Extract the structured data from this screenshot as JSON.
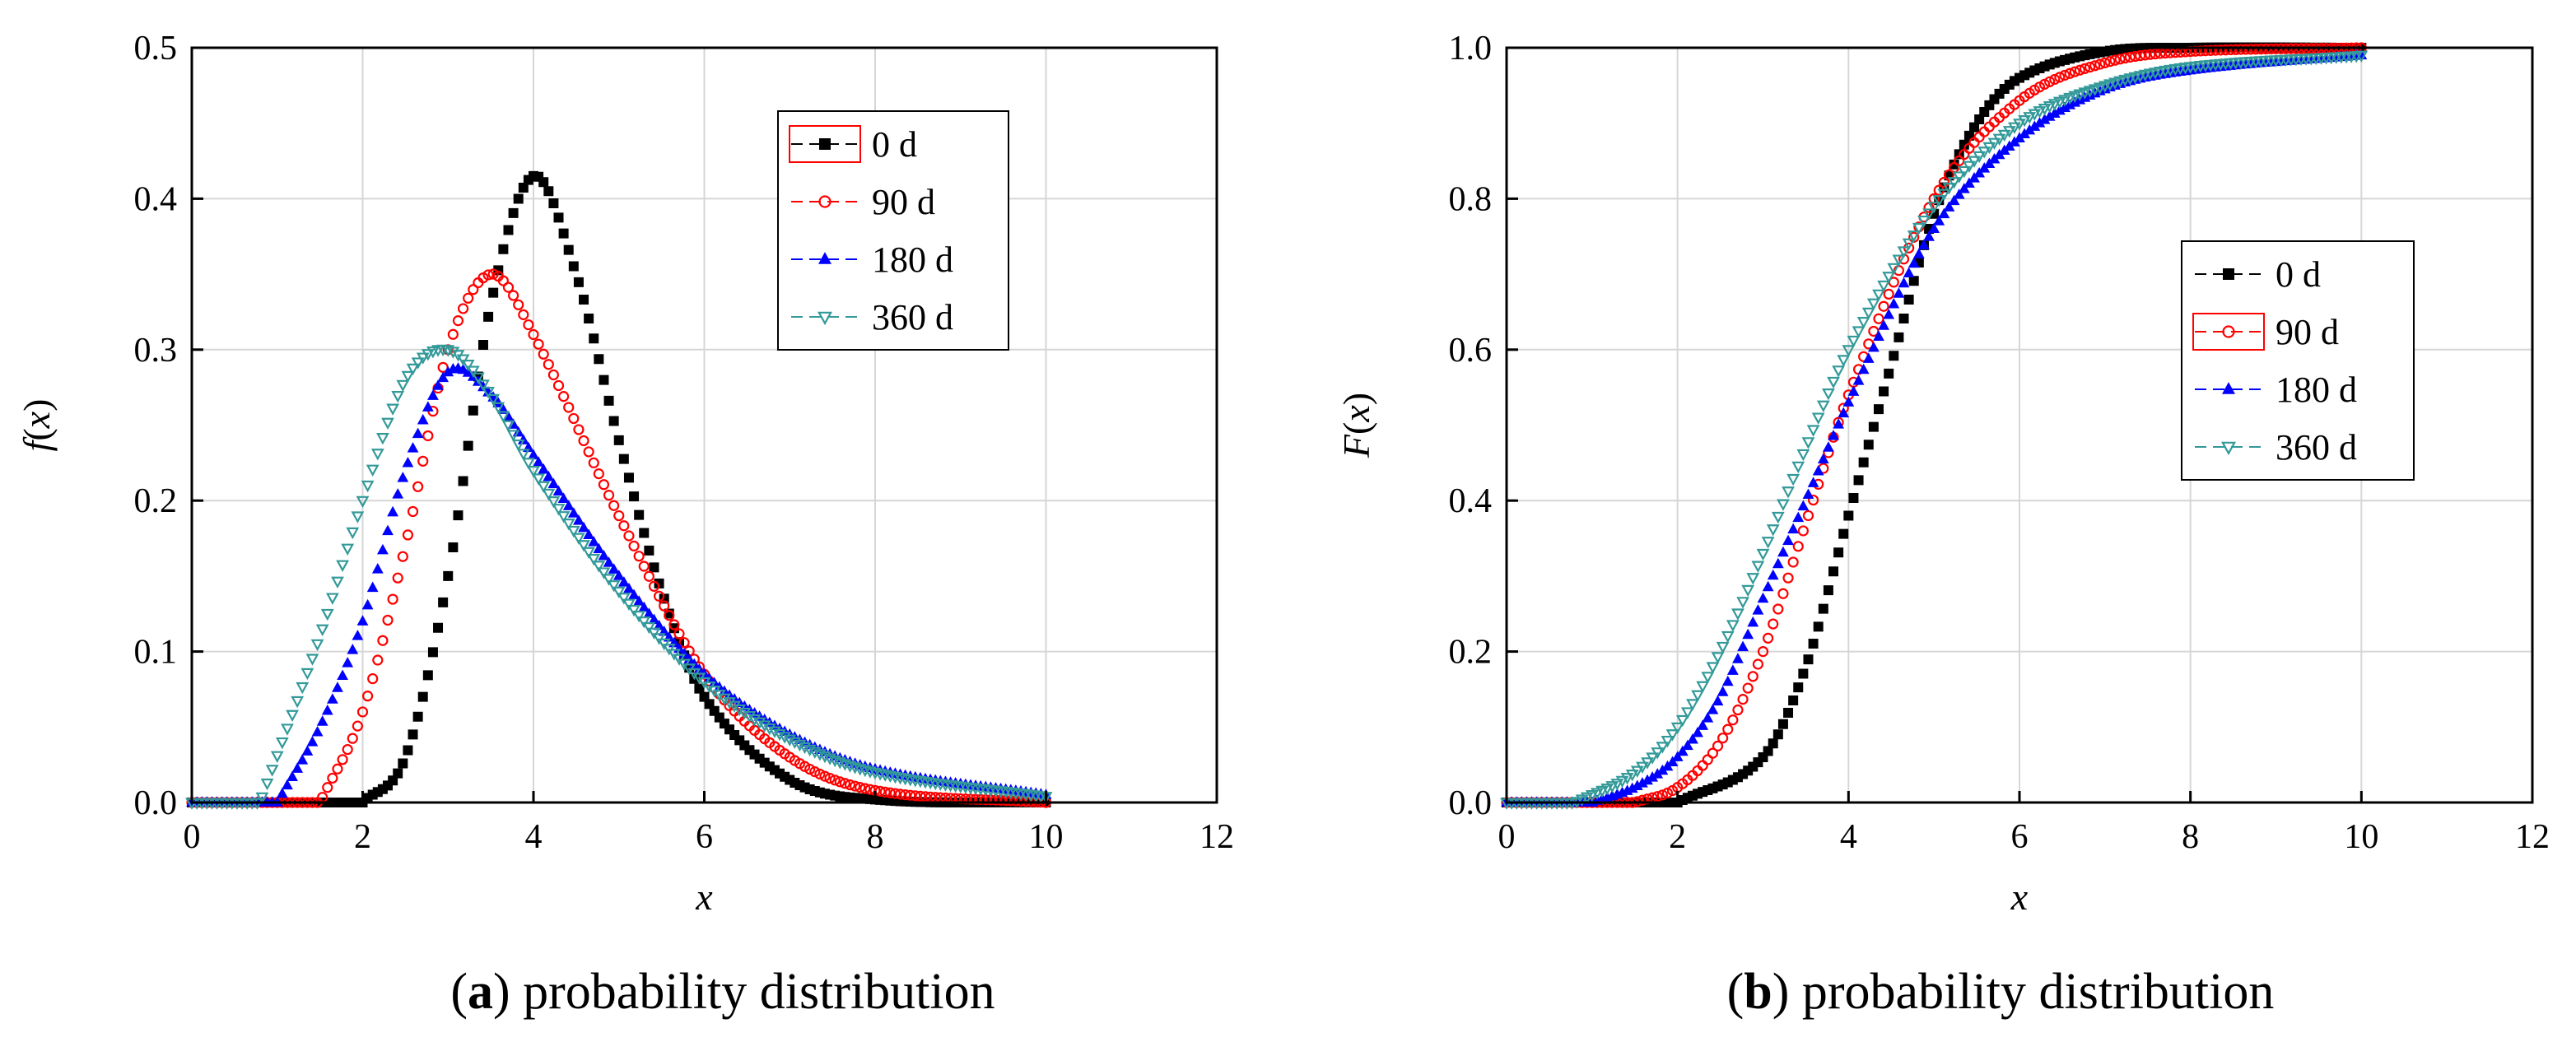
{
  "chart_data": [
    {
      "id": "a",
      "type": "line",
      "caption_letter": "a",
      "caption_text": "probability distribution",
      "xlabel": "x",
      "ylabel": "f(x)",
      "ylabel_parts": {
        "f": "f",
        "open": "(",
        "x": "x",
        "close": ")"
      },
      "xlim": [
        0,
        12
      ],
      "ylim": [
        0,
        0.5
      ],
      "xticks": [
        0,
        2,
        4,
        6,
        8,
        10,
        12
      ],
      "yticks": [
        0.0,
        0.1,
        0.2,
        0.3,
        0.4,
        0.5
      ],
      "ytick_labels": [
        "0.0",
        "0.1",
        "0.2",
        "0.3",
        "0.4",
        "0.5"
      ],
      "grid": true,
      "legend_position": "top-right",
      "x_range_of_data": [
        0,
        10
      ],
      "series": [
        {
          "name": "0 d",
          "marker": "square",
          "color": "#000000",
          "peak_x": 4.0,
          "peak_y": 0.415,
          "samples": [
            [
              2,
              0.0
            ],
            [
              2.5,
              0.03
            ],
            [
              3,
              0.15
            ],
            [
              3.5,
              0.33
            ],
            [
              4,
              0.415
            ],
            [
              4.5,
              0.35
            ],
            [
              5,
              0.24
            ],
            [
              5.5,
              0.14
            ],
            [
              6,
              0.07
            ],
            [
              7,
              0.015
            ],
            [
              8,
              0.002
            ],
            [
              10,
              0.0
            ]
          ]
        },
        {
          "name": "90 d",
          "marker": "circle",
          "color": "#ff0000",
          "peak_x": 3.5,
          "peak_y": 0.35,
          "samples": [
            [
              1.5,
              0.0
            ],
            [
              2,
              0.06
            ],
            [
              2.5,
              0.17
            ],
            [
              3,
              0.3
            ],
            [
              3.5,
              0.35
            ],
            [
              4,
              0.31
            ],
            [
              5,
              0.19
            ],
            [
              6,
              0.085
            ],
            [
              7,
              0.03
            ],
            [
              8,
              0.008
            ],
            [
              10,
              0.0
            ]
          ]
        },
        {
          "name": "180 d",
          "marker": "triangle-up",
          "color": "#0000ff",
          "peak_x": 3.1,
          "peak_y": 0.29,
          "samples": [
            [
              1.0,
              0.0
            ],
            [
              1.5,
              0.05
            ],
            [
              2,
              0.12
            ],
            [
              2.5,
              0.22
            ],
            [
              3,
              0.285
            ],
            [
              3.5,
              0.27
            ],
            [
              4,
              0.23
            ],
            [
              5,
              0.15
            ],
            [
              6,
              0.085
            ],
            [
              7,
              0.045
            ],
            [
              8,
              0.022
            ],
            [
              10,
              0.005
            ]
          ]
        },
        {
          "name": "360 d",
          "marker": "triangle-down",
          "color": "#339999",
          "peak_x": 2.9,
          "peak_y": 0.3,
          "samples": [
            [
              0.8,
              0.0
            ],
            [
              1.5,
              0.11
            ],
            [
              2,
              0.2
            ],
            [
              2.5,
              0.28
            ],
            [
              3,
              0.3
            ],
            [
              3.5,
              0.27
            ],
            [
              4,
              0.22
            ],
            [
              5,
              0.14
            ],
            [
              6,
              0.08
            ],
            [
              7,
              0.042
            ],
            [
              8,
              0.02
            ],
            [
              10,
              0.004
            ]
          ]
        }
      ]
    },
    {
      "id": "b",
      "type": "line",
      "caption_letter": "b",
      "caption_text": "probability distribution",
      "xlabel": "x",
      "ylabel": "F(x)",
      "ylabel_parts": {
        "f": "F",
        "open": "(",
        "x": "x",
        "close": ")"
      },
      "xlim": [
        0,
        12
      ],
      "ylim": [
        0,
        1.0
      ],
      "xticks": [
        0,
        2,
        4,
        6,
        8,
        10,
        12
      ],
      "yticks": [
        0.0,
        0.2,
        0.4,
        0.6,
        0.8,
        1.0
      ],
      "ytick_labels": [
        "0.0",
        "0.2",
        "0.4",
        "0.6",
        "0.8",
        "1.0"
      ],
      "grid": true,
      "legend_position": "right",
      "x_range_of_data": [
        0,
        10
      ],
      "series": [
        {
          "name": "0 d",
          "marker": "square",
          "color": "#000000",
          "samples": [
            [
              2,
              0.0
            ],
            [
              3,
              0.06
            ],
            [
              3.5,
              0.18
            ],
            [
              4,
              0.38
            ],
            [
              4.5,
              0.58
            ],
            [
              5,
              0.78
            ],
            [
              5.5,
              0.9
            ],
            [
              6,
              0.96
            ],
            [
              7,
              0.995
            ],
            [
              8,
              1.0
            ],
            [
              10,
              1.0
            ]
          ]
        },
        {
          "name": "90 d",
          "marker": "circle",
          "color": "#ff0000",
          "samples": [
            [
              1.5,
              0.0
            ],
            [
              2,
              0.02
            ],
            [
              2.5,
              0.08
            ],
            [
              3,
              0.2
            ],
            [
              3.5,
              0.37
            ],
            [
              4,
              0.54
            ],
            [
              5,
              0.8
            ],
            [
              6,
              0.93
            ],
            [
              7,
              0.98
            ],
            [
              8,
              0.995
            ],
            [
              10,
              1.0
            ]
          ]
        },
        {
          "name": "180 d",
          "marker": "triangle-up",
          "color": "#0000ff",
          "samples": [
            [
              1.0,
              0.0
            ],
            [
              1.5,
              0.02
            ],
            [
              2,
              0.06
            ],
            [
              2.5,
              0.14
            ],
            [
              3,
              0.27
            ],
            [
              3.5,
              0.4
            ],
            [
              4,
              0.53
            ],
            [
              5,
              0.76
            ],
            [
              6,
              0.88
            ],
            [
              7,
              0.945
            ],
            [
              8,
              0.97
            ],
            [
              10,
              0.99
            ]
          ]
        },
        {
          "name": "360 d",
          "marker": "triangle-down",
          "color": "#339999",
          "samples": [
            [
              0.8,
              0.0
            ],
            [
              1.5,
              0.04
            ],
            [
              2,
              0.1
            ],
            [
              2.5,
              0.2
            ],
            [
              3,
              0.33
            ],
            [
              3.5,
              0.47
            ],
            [
              4,
              0.6
            ],
            [
              5,
              0.79
            ],
            [
              6,
              0.9
            ],
            [
              7,
              0.95
            ],
            [
              8,
              0.975
            ],
            [
              10,
              0.99
            ]
          ]
        }
      ]
    }
  ]
}
